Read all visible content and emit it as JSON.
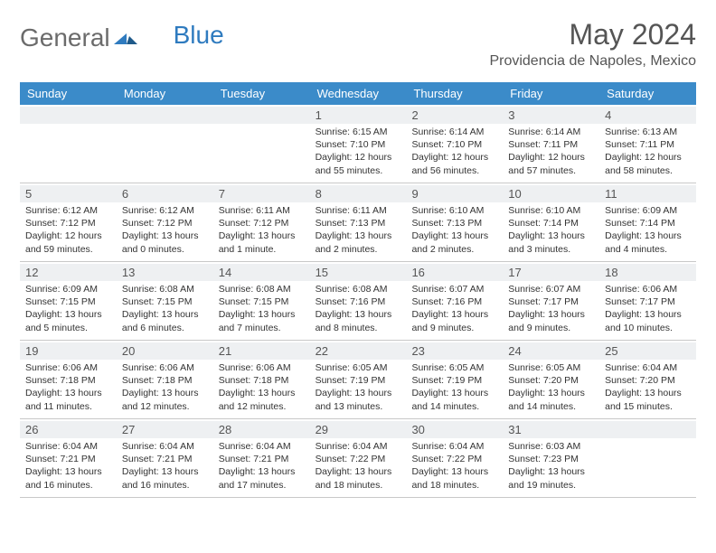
{
  "logo": {
    "part1": "General",
    "part2": "Blue"
  },
  "title": "May 2024",
  "location": "Providencia de Napoles, Mexico",
  "day_headers": [
    "Sunday",
    "Monday",
    "Tuesday",
    "Wednesday",
    "Thursday",
    "Friday",
    "Saturday"
  ],
  "colors": {
    "header_bg": "#3b8bc9",
    "header_text": "#ffffff",
    "daynum_bg": "#eef0f2",
    "border": "#c8c8c8",
    "title_color": "#555555",
    "logo_gray": "#6b6b6b",
    "logo_blue": "#2f7bbf",
    "text": "#333333"
  },
  "weeks": [
    [
      {
        "n": "",
        "sr": "",
        "ss": "",
        "dl": ""
      },
      {
        "n": "",
        "sr": "",
        "ss": "",
        "dl": ""
      },
      {
        "n": "",
        "sr": "",
        "ss": "",
        "dl": ""
      },
      {
        "n": "1",
        "sr": "Sunrise: 6:15 AM",
        "ss": "Sunset: 7:10 PM",
        "dl": "Daylight: 12 hours and 55 minutes."
      },
      {
        "n": "2",
        "sr": "Sunrise: 6:14 AM",
        "ss": "Sunset: 7:10 PM",
        "dl": "Daylight: 12 hours and 56 minutes."
      },
      {
        "n": "3",
        "sr": "Sunrise: 6:14 AM",
        "ss": "Sunset: 7:11 PM",
        "dl": "Daylight: 12 hours and 57 minutes."
      },
      {
        "n": "4",
        "sr": "Sunrise: 6:13 AM",
        "ss": "Sunset: 7:11 PM",
        "dl": "Daylight: 12 hours and 58 minutes."
      }
    ],
    [
      {
        "n": "5",
        "sr": "Sunrise: 6:12 AM",
        "ss": "Sunset: 7:12 PM",
        "dl": "Daylight: 12 hours and 59 minutes."
      },
      {
        "n": "6",
        "sr": "Sunrise: 6:12 AM",
        "ss": "Sunset: 7:12 PM",
        "dl": "Daylight: 13 hours and 0 minutes."
      },
      {
        "n": "7",
        "sr": "Sunrise: 6:11 AM",
        "ss": "Sunset: 7:12 PM",
        "dl": "Daylight: 13 hours and 1 minute."
      },
      {
        "n": "8",
        "sr": "Sunrise: 6:11 AM",
        "ss": "Sunset: 7:13 PM",
        "dl": "Daylight: 13 hours and 2 minutes."
      },
      {
        "n": "9",
        "sr": "Sunrise: 6:10 AM",
        "ss": "Sunset: 7:13 PM",
        "dl": "Daylight: 13 hours and 2 minutes."
      },
      {
        "n": "10",
        "sr": "Sunrise: 6:10 AM",
        "ss": "Sunset: 7:14 PM",
        "dl": "Daylight: 13 hours and 3 minutes."
      },
      {
        "n": "11",
        "sr": "Sunrise: 6:09 AM",
        "ss": "Sunset: 7:14 PM",
        "dl": "Daylight: 13 hours and 4 minutes."
      }
    ],
    [
      {
        "n": "12",
        "sr": "Sunrise: 6:09 AM",
        "ss": "Sunset: 7:15 PM",
        "dl": "Daylight: 13 hours and 5 minutes."
      },
      {
        "n": "13",
        "sr": "Sunrise: 6:08 AM",
        "ss": "Sunset: 7:15 PM",
        "dl": "Daylight: 13 hours and 6 minutes."
      },
      {
        "n": "14",
        "sr": "Sunrise: 6:08 AM",
        "ss": "Sunset: 7:15 PM",
        "dl": "Daylight: 13 hours and 7 minutes."
      },
      {
        "n": "15",
        "sr": "Sunrise: 6:08 AM",
        "ss": "Sunset: 7:16 PM",
        "dl": "Daylight: 13 hours and 8 minutes."
      },
      {
        "n": "16",
        "sr": "Sunrise: 6:07 AM",
        "ss": "Sunset: 7:16 PM",
        "dl": "Daylight: 13 hours and 9 minutes."
      },
      {
        "n": "17",
        "sr": "Sunrise: 6:07 AM",
        "ss": "Sunset: 7:17 PM",
        "dl": "Daylight: 13 hours and 9 minutes."
      },
      {
        "n": "18",
        "sr": "Sunrise: 6:06 AM",
        "ss": "Sunset: 7:17 PM",
        "dl": "Daylight: 13 hours and 10 minutes."
      }
    ],
    [
      {
        "n": "19",
        "sr": "Sunrise: 6:06 AM",
        "ss": "Sunset: 7:18 PM",
        "dl": "Daylight: 13 hours and 11 minutes."
      },
      {
        "n": "20",
        "sr": "Sunrise: 6:06 AM",
        "ss": "Sunset: 7:18 PM",
        "dl": "Daylight: 13 hours and 12 minutes."
      },
      {
        "n": "21",
        "sr": "Sunrise: 6:06 AM",
        "ss": "Sunset: 7:18 PM",
        "dl": "Daylight: 13 hours and 12 minutes."
      },
      {
        "n": "22",
        "sr": "Sunrise: 6:05 AM",
        "ss": "Sunset: 7:19 PM",
        "dl": "Daylight: 13 hours and 13 minutes."
      },
      {
        "n": "23",
        "sr": "Sunrise: 6:05 AM",
        "ss": "Sunset: 7:19 PM",
        "dl": "Daylight: 13 hours and 14 minutes."
      },
      {
        "n": "24",
        "sr": "Sunrise: 6:05 AM",
        "ss": "Sunset: 7:20 PM",
        "dl": "Daylight: 13 hours and 14 minutes."
      },
      {
        "n": "25",
        "sr": "Sunrise: 6:04 AM",
        "ss": "Sunset: 7:20 PM",
        "dl": "Daylight: 13 hours and 15 minutes."
      }
    ],
    [
      {
        "n": "26",
        "sr": "Sunrise: 6:04 AM",
        "ss": "Sunset: 7:21 PM",
        "dl": "Daylight: 13 hours and 16 minutes."
      },
      {
        "n": "27",
        "sr": "Sunrise: 6:04 AM",
        "ss": "Sunset: 7:21 PM",
        "dl": "Daylight: 13 hours and 16 minutes."
      },
      {
        "n": "28",
        "sr": "Sunrise: 6:04 AM",
        "ss": "Sunset: 7:21 PM",
        "dl": "Daylight: 13 hours and 17 minutes."
      },
      {
        "n": "29",
        "sr": "Sunrise: 6:04 AM",
        "ss": "Sunset: 7:22 PM",
        "dl": "Daylight: 13 hours and 18 minutes."
      },
      {
        "n": "30",
        "sr": "Sunrise: 6:04 AM",
        "ss": "Sunset: 7:22 PM",
        "dl": "Daylight: 13 hours and 18 minutes."
      },
      {
        "n": "31",
        "sr": "Sunrise: 6:03 AM",
        "ss": "Sunset: 7:23 PM",
        "dl": "Daylight: 13 hours and 19 minutes."
      },
      {
        "n": "",
        "sr": "",
        "ss": "",
        "dl": ""
      }
    ]
  ]
}
